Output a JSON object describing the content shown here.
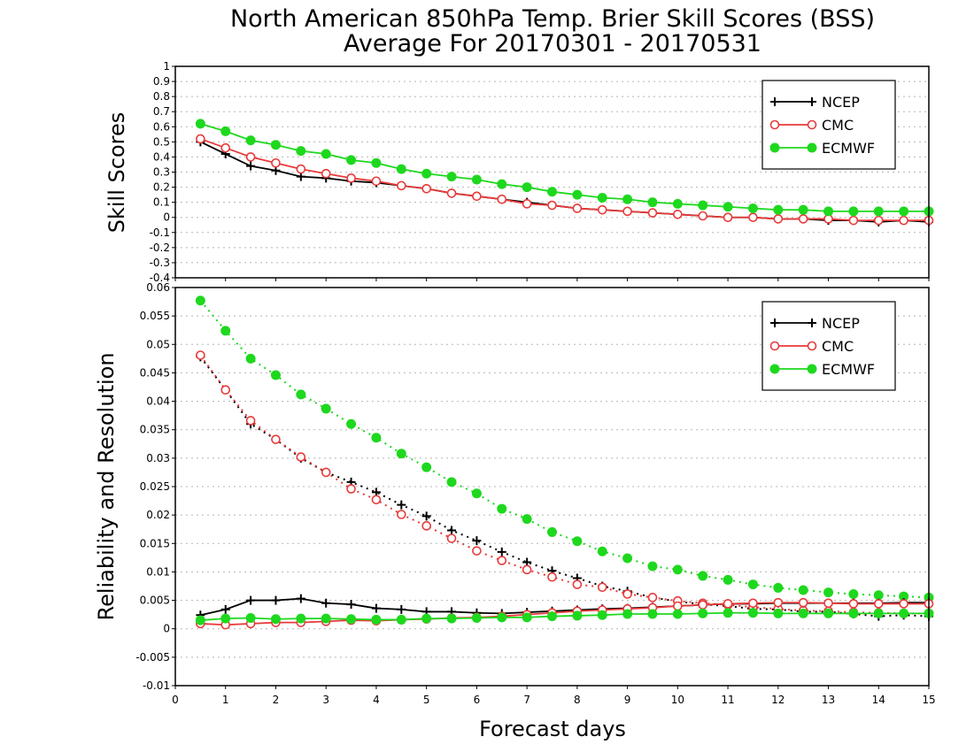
{
  "title_line1": "North American 850hPa Temp. Brier Skill Scores (BSS)",
  "title_line2": "Average For 20170301 - 20170531",
  "xlabel": "Forecast days",
  "colors": {
    "NCEP": "#000000",
    "CMC": "#e83a3a",
    "ECMWF": "#1ed81e"
  },
  "chart_data": [
    {
      "type": "line",
      "panel": "top",
      "ylabel": "Skill Scores",
      "xlim": [
        0,
        15
      ],
      "ylim": [
        -0.4,
        1
      ],
      "xticks": [
        "0",
        "1",
        "2",
        "3",
        "4",
        "5",
        "6",
        "7",
        "8",
        "9",
        "10",
        "11",
        "12",
        "13",
        "14",
        "15"
      ],
      "yticks": [
        "-0.4",
        "-0.3",
        "-0.2",
        "-0.1",
        "0",
        "0.1",
        "0.2",
        "0.3",
        "0.4",
        "0.5",
        "0.6",
        "0.7",
        "0.8",
        "0.9",
        "1"
      ],
      "legend_position": "top-right",
      "x": [
        0.5,
        1,
        1.5,
        2,
        2.5,
        3,
        3.5,
        4,
        4.5,
        5,
        5.5,
        6,
        6.5,
        7,
        7.5,
        8,
        8.5,
        9,
        9.5,
        10,
        10.5,
        11,
        11.5,
        12,
        12.5,
        13,
        13.5,
        14,
        14.5,
        15
      ],
      "series": [
        {
          "name": "NCEP",
          "marker": "plus",
          "style": "solid",
          "values": [
            0.5,
            0.42,
            0.34,
            0.31,
            0.27,
            0.26,
            0.24,
            0.23,
            0.21,
            0.19,
            0.16,
            0.14,
            0.12,
            0.1,
            0.08,
            0.06,
            0.05,
            0.04,
            0.03,
            0.02,
            0.01,
            0.0,
            0.0,
            -0.01,
            -0.01,
            -0.02,
            -0.02,
            -0.03,
            -0.02,
            -0.03
          ]
        },
        {
          "name": "CMC",
          "marker": "open-circle",
          "style": "solid",
          "values": [
            0.52,
            0.46,
            0.4,
            0.36,
            0.32,
            0.29,
            0.26,
            0.24,
            0.21,
            0.19,
            0.16,
            0.14,
            0.12,
            0.09,
            0.08,
            0.06,
            0.05,
            0.04,
            0.03,
            0.02,
            0.01,
            0.0,
            0.0,
            -0.01,
            -0.01,
            -0.01,
            -0.02,
            -0.02,
            -0.02,
            -0.02
          ]
        },
        {
          "name": "ECMWF",
          "marker": "filled-circle",
          "style": "solid",
          "values": [
            0.62,
            0.57,
            0.51,
            0.48,
            0.44,
            0.42,
            0.38,
            0.36,
            0.32,
            0.29,
            0.27,
            0.25,
            0.22,
            0.2,
            0.17,
            0.15,
            0.13,
            0.12,
            0.1,
            0.09,
            0.08,
            0.07,
            0.06,
            0.05,
            0.05,
            0.04,
            0.04,
            0.04,
            0.04,
            0.04
          ]
        }
      ]
    },
    {
      "type": "line",
      "panel": "bottom",
      "ylabel": "Reliability and Resolution",
      "xlim": [
        0,
        15
      ],
      "ylim": [
        -0.01,
        0.06
      ],
      "xticks": [
        "0",
        "1",
        "2",
        "3",
        "4",
        "5",
        "6",
        "7",
        "8",
        "9",
        "10",
        "11",
        "12",
        "13",
        "14",
        "15"
      ],
      "yticks": [
        "-0.01",
        "-0.005",
        "0",
        "0.005",
        "0.01",
        "0.015",
        "0.02",
        "0.025",
        "0.03",
        "0.035",
        "0.04",
        "0.045",
        "0.05",
        "0.055",
        "0.06"
      ],
      "legend_position": "top-right",
      "x": [
        0.5,
        1,
        1.5,
        2,
        2.5,
        3,
        3.5,
        4,
        4.5,
        5,
        5.5,
        6,
        6.5,
        7,
        7.5,
        8,
        8.5,
        9,
        9.5,
        10,
        10.5,
        11,
        11.5,
        12,
        12.5,
        13,
        13.5,
        14,
        14.5,
        15
      ],
      "series": [
        {
          "name": "NCEP",
          "marker": "plus",
          "style": "dotted",
          "values": [
            0.0478,
            0.042,
            0.036,
            0.0333,
            0.03,
            0.0275,
            0.0258,
            0.024,
            0.0218,
            0.0198,
            0.0173,
            0.0155,
            0.0135,
            0.0117,
            0.0102,
            0.0089,
            0.0075,
            0.0066,
            0.0055,
            0.0048,
            0.0043,
            0.004,
            0.0035,
            0.0034,
            0.003,
            0.003,
            0.0026,
            0.0022,
            0.0024,
            0.0022
          ]
        },
        {
          "name": "CMC",
          "marker": "open-circle",
          "style": "dotted",
          "values": [
            0.0481,
            0.042,
            0.0366,
            0.0333,
            0.0302,
            0.0275,
            0.0246,
            0.0227,
            0.0201,
            0.0181,
            0.0159,
            0.0137,
            0.012,
            0.0104,
            0.0091,
            0.0078,
            0.0073,
            0.0061,
            0.0055,
            0.0049,
            0.0045,
            0.0042,
            0.0038,
            0.0035,
            0.0032,
            0.0031,
            0.0029,
            0.0028,
            0.0027,
            0.0027
          ]
        },
        {
          "name": "ECMWF",
          "marker": "filled-circle",
          "style": "dotted",
          "values": [
            0.0577,
            0.0524,
            0.0475,
            0.0446,
            0.0412,
            0.0387,
            0.036,
            0.0336,
            0.0308,
            0.0284,
            0.0258,
            0.0238,
            0.0211,
            0.0193,
            0.017,
            0.0154,
            0.0136,
            0.0124,
            0.011,
            0.0104,
            0.0093,
            0.0086,
            0.0078,
            0.0072,
            0.0068,
            0.0064,
            0.0061,
            0.0059,
            0.0057,
            0.0055
          ]
        },
        {
          "name": "NCEP",
          "marker": "plus",
          "style": "solid",
          "values": [
            0.0024,
            0.0034,
            0.005,
            0.005,
            0.0053,
            0.0045,
            0.0043,
            0.0036,
            0.0034,
            0.003,
            0.003,
            0.0028,
            0.0027,
            0.0029,
            0.0031,
            0.0033,
            0.0035,
            0.0036,
            0.0038,
            0.004,
            0.0042,
            0.0044,
            0.0044,
            0.0045,
            0.0045,
            0.0045,
            0.0045,
            0.0045,
            0.0046,
            0.0046
          ]
        },
        {
          "name": "CMC",
          "marker": "open-circle",
          "style": "solid",
          "values": [
            0.0009,
            0.0007,
            0.0009,
            0.0011,
            0.0011,
            0.0013,
            0.0015,
            0.0014,
            0.0016,
            0.0017,
            0.0019,
            0.002,
            0.0022,
            0.0025,
            0.0028,
            0.0031,
            0.0033,
            0.0035,
            0.0037,
            0.004,
            0.0042,
            0.0044,
            0.0045,
            0.0046,
            0.0046,
            0.0045,
            0.0044,
            0.0044,
            0.0044,
            0.0044
          ]
        },
        {
          "name": "ECMWF",
          "marker": "filled-circle",
          "style": "solid",
          "values": [
            0.0015,
            0.0018,
            0.0019,
            0.0017,
            0.0018,
            0.0018,
            0.0017,
            0.0016,
            0.0016,
            0.0018,
            0.0018,
            0.0019,
            0.002,
            0.002,
            0.0022,
            0.0023,
            0.0024,
            0.0026,
            0.0026,
            0.0026,
            0.0027,
            0.0028,
            0.0028,
            0.0027,
            0.0027,
            0.0027,
            0.0027,
            0.0027,
            0.0027,
            0.0027
          ]
        }
      ]
    }
  ]
}
